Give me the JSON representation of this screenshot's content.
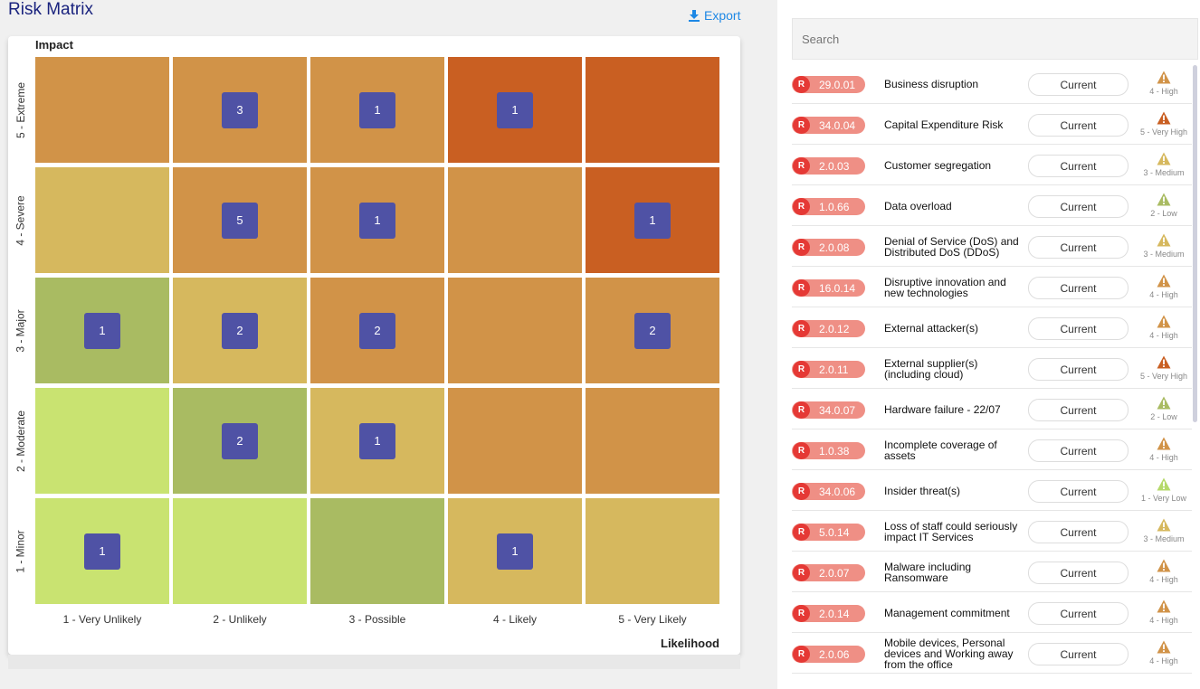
{
  "title": "Risk Matrix",
  "export_label": "Export",
  "axis": {
    "y_title": "Impact",
    "x_title": "Likelihood"
  },
  "rows": [
    "5 - Extreme",
    "4 - Severe",
    "3 - Major",
    "2 - Moderate",
    "1 - Minor"
  ],
  "cols": [
    "1 - Very Unlikely",
    "2 - Unlikely",
    "3 - Possible",
    "4 - Likely",
    "5 - Very Likely"
  ],
  "colors": {
    "light_green": "#c9e371",
    "green": "#a9bb62",
    "yellow": "#d6b85e",
    "orange": "#d19348",
    "red_orange": "#c95f22",
    "badge": "#4f52a5"
  },
  "matrix": [
    [
      {
        "c": "orange",
        "n": ""
      },
      {
        "c": "orange",
        "n": "3"
      },
      {
        "c": "orange",
        "n": "1"
      },
      {
        "c": "red_orange",
        "n": "1"
      },
      {
        "c": "red_orange",
        "n": ""
      }
    ],
    [
      {
        "c": "yellow",
        "n": ""
      },
      {
        "c": "orange",
        "n": "5"
      },
      {
        "c": "orange",
        "n": "1"
      },
      {
        "c": "orange",
        "n": ""
      },
      {
        "c": "red_orange",
        "n": "1"
      }
    ],
    [
      {
        "c": "green",
        "n": "1"
      },
      {
        "c": "yellow",
        "n": "2"
      },
      {
        "c": "orange",
        "n": "2"
      },
      {
        "c": "orange",
        "n": ""
      },
      {
        "c": "orange",
        "n": "2"
      }
    ],
    [
      {
        "c": "light_green",
        "n": ""
      },
      {
        "c": "green",
        "n": "2"
      },
      {
        "c": "yellow",
        "n": "1"
      },
      {
        "c": "orange",
        "n": ""
      },
      {
        "c": "orange",
        "n": ""
      }
    ],
    [
      {
        "c": "light_green",
        "n": "1"
      },
      {
        "c": "light_green",
        "n": ""
      },
      {
        "c": "green",
        "n": ""
      },
      {
        "c": "yellow",
        "n": "1"
      },
      {
        "c": "yellow",
        "n": ""
      }
    ]
  ],
  "search": {
    "placeholder": "Search"
  },
  "severity_colors": {
    "5 - Very High": "#c95f22",
    "4 - High": "#d19348",
    "3 - Medium": "#d6b85e",
    "2 - Low": "#a9bb62",
    "1 - Very Low": "#b5d96a"
  },
  "risks": [
    {
      "id": "29.0.01",
      "name": "Business disruption",
      "status": "Current",
      "level": "4 - High"
    },
    {
      "id": "34.0.04",
      "name": "Capital Expenditure Risk",
      "status": "Current",
      "level": "5 - Very High"
    },
    {
      "id": "2.0.03",
      "name": "Customer segregation",
      "status": "Current",
      "level": "3 - Medium"
    },
    {
      "id": "1.0.66",
      "name": "Data overload",
      "status": "Current",
      "level": "2 - Low"
    },
    {
      "id": "2.0.08",
      "name": "Denial of Service (DoS) and Distributed DoS (DDoS)",
      "status": "Current",
      "level": "3 - Medium"
    },
    {
      "id": "16.0.14",
      "name": "Disruptive innovation and new technologies",
      "status": "Current",
      "level": "4 - High"
    },
    {
      "id": "2.0.12",
      "name": "External attacker(s)",
      "status": "Current",
      "level": "4 - High"
    },
    {
      "id": "2.0.11",
      "name": "External supplier(s) (including cloud)",
      "status": "Current",
      "level": "5 - Very High"
    },
    {
      "id": "34.0.07",
      "name": "Hardware failure - 22/07",
      "status": "Current",
      "level": "2 - Low"
    },
    {
      "id": "1.0.38",
      "name": "Incomplete coverage of assets",
      "status": "Current",
      "level": "4 - High"
    },
    {
      "id": "34.0.06",
      "name": "Insider threat(s)",
      "status": "Current",
      "level": "1 - Very Low"
    },
    {
      "id": "5.0.14",
      "name": "Loss of staff could seriously impact IT Services",
      "status": "Current",
      "level": "3 - Medium"
    },
    {
      "id": "2.0.07",
      "name": "Malware including Ransomware",
      "status": "Current",
      "level": "4 - High"
    },
    {
      "id": "2.0.14",
      "name": "Management commitment",
      "status": "Current",
      "level": "4 - High"
    },
    {
      "id": "2.0.06",
      "name": "Mobile devices, Personal devices and Working away from the office",
      "status": "Current",
      "level": "4 - High"
    }
  ]
}
